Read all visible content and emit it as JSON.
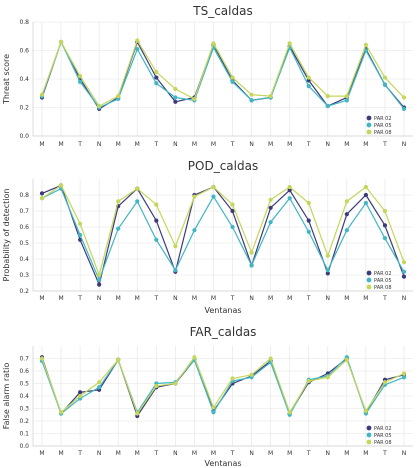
{
  "colors": {
    "series": [
      "#3b3b7a",
      "#41b6c4",
      "#c5d65a"
    ],
    "grid": "#e3e3e3",
    "text": "#333333"
  },
  "chart_data": [
    {
      "type": "line",
      "title": "TS_caldas",
      "xlabel": "",
      "ylabel": "Threat score",
      "categories": [
        "M",
        "M",
        "T",
        "N",
        "M",
        "M",
        "T",
        "N",
        "M",
        "M",
        "T",
        "N",
        "M",
        "M",
        "T",
        "N",
        "M",
        "M",
        "T",
        "N"
      ],
      "ylim": [
        0,
        0.8
      ],
      "yticks": [
        0.0,
        0.2,
        0.4,
        0.6,
        0.8
      ],
      "grid": true,
      "legend": "bottom-right",
      "series": [
        {
          "name": "PAR 02",
          "values": [
            0.27,
            0.66,
            0.4,
            0.19,
            0.27,
            0.66,
            0.41,
            0.24,
            0.27,
            0.64,
            0.39,
            0.25,
            0.27,
            0.63,
            0.39,
            0.21,
            0.27,
            0.61,
            0.36,
            0.2
          ]
        },
        {
          "name": "PAR 05",
          "values": [
            0.28,
            0.66,
            0.38,
            0.2,
            0.26,
            0.61,
            0.37,
            0.27,
            0.25,
            0.62,
            0.38,
            0.25,
            0.27,
            0.62,
            0.35,
            0.21,
            0.25,
            0.6,
            0.36,
            0.19
          ]
        },
        {
          "name": "PAR 08",
          "values": [
            0.29,
            0.66,
            0.42,
            0.21,
            0.28,
            0.67,
            0.45,
            0.33,
            0.26,
            0.65,
            0.41,
            0.29,
            0.28,
            0.65,
            0.41,
            0.28,
            0.28,
            0.64,
            0.41,
            0.27
          ]
        }
      ]
    },
    {
      "type": "line",
      "title": "POD_caldas",
      "xlabel": "Ventanas",
      "ylabel": "Probability of detection",
      "categories": [
        "M",
        "M",
        "T",
        "N",
        "M",
        "M",
        "T",
        "N",
        "M",
        "M",
        "T",
        "N",
        "M",
        "M",
        "T",
        "N",
        "M",
        "M",
        "T",
        "N"
      ],
      "ylim": [
        0.2,
        0.9
      ],
      "yticks": [
        0.2,
        0.3,
        0.4,
        0.5,
        0.6,
        0.7,
        0.8
      ],
      "grid": true,
      "legend": "bottom-right",
      "series": [
        {
          "name": "PAR 02",
          "values": [
            0.81,
            0.86,
            0.52,
            0.24,
            0.73,
            0.84,
            0.64,
            0.32,
            0.8,
            0.85,
            0.7,
            0.36,
            0.72,
            0.83,
            0.64,
            0.31,
            0.68,
            0.8,
            0.61,
            0.29
          ]
        },
        {
          "name": "PAR 05",
          "values": [
            0.78,
            0.84,
            0.55,
            0.27,
            0.59,
            0.76,
            0.52,
            0.33,
            0.58,
            0.79,
            0.6,
            0.36,
            0.63,
            0.78,
            0.57,
            0.33,
            0.58,
            0.75,
            0.53,
            0.32
          ]
        },
        {
          "name": "PAR 08",
          "values": [
            0.78,
            0.86,
            0.62,
            0.3,
            0.76,
            0.84,
            0.74,
            0.48,
            0.79,
            0.85,
            0.74,
            0.44,
            0.77,
            0.85,
            0.75,
            0.42,
            0.76,
            0.85,
            0.7,
            0.38
          ]
        }
      ]
    },
    {
      "type": "line",
      "title": "FAR_caldas",
      "xlabel": "Ventanas",
      "ylabel": "False alarm ratio",
      "categories": [
        "M",
        "M",
        "T",
        "N",
        "M",
        "M",
        "T",
        "N",
        "M",
        "M",
        "T",
        "N",
        "M",
        "M",
        "T",
        "N",
        "M",
        "M",
        "T",
        "N"
      ],
      "ylim": [
        0.0,
        0.8
      ],
      "yticks": [
        0.0,
        0.1,
        0.2,
        0.3,
        0.4,
        0.5,
        0.6,
        0.7
      ],
      "grid": true,
      "legend": "bottom-right",
      "series": [
        {
          "name": "PAR 02",
          "values": [
            0.71,
            0.26,
            0.43,
            0.45,
            0.69,
            0.24,
            0.47,
            0.5,
            0.69,
            0.28,
            0.5,
            0.56,
            0.68,
            0.26,
            0.51,
            0.58,
            0.7,
            0.27,
            0.53,
            0.57
          ]
        },
        {
          "name": "PAR 05",
          "values": [
            0.68,
            0.26,
            0.38,
            0.47,
            0.69,
            0.27,
            0.5,
            0.51,
            0.69,
            0.27,
            0.52,
            0.55,
            0.67,
            0.25,
            0.53,
            0.56,
            0.71,
            0.26,
            0.49,
            0.55
          ]
        },
        {
          "name": "PAR 08",
          "values": [
            0.7,
            0.27,
            0.4,
            0.51,
            0.69,
            0.26,
            0.48,
            0.5,
            0.71,
            0.31,
            0.54,
            0.57,
            0.7,
            0.27,
            0.52,
            0.55,
            0.69,
            0.28,
            0.51,
            0.58
          ]
        }
      ]
    }
  ]
}
